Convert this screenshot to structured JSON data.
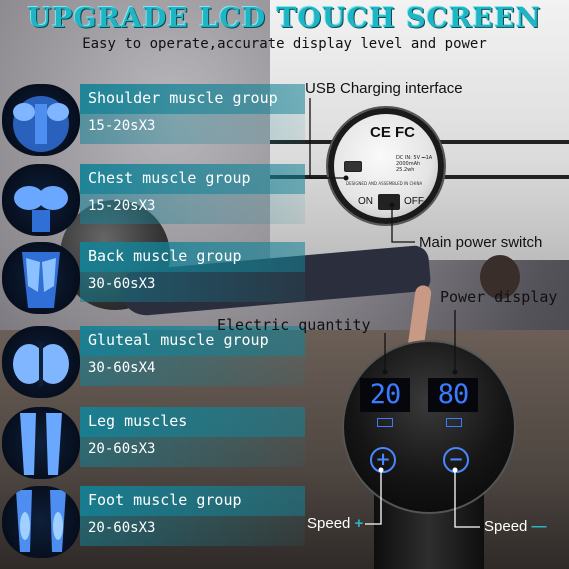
{
  "header": {
    "title": "UPGRADE LCD TOUCH SCREEN",
    "subtitle": "Easy to operate,accurate display level and power"
  },
  "muscle_groups": [
    {
      "name": "Shoulder muscle group",
      "time": "15-20sX3",
      "icon": "shoulder-muscle-icon"
    },
    {
      "name": "Chest muscle group",
      "time": "15-20sX3",
      "icon": "chest-muscle-icon"
    },
    {
      "name": "Back muscle group",
      "time": "30-60sX3",
      "icon": "back-muscle-icon"
    },
    {
      "name": "Gluteal muscle group",
      "time": "30-60sX4",
      "icon": "gluteal-muscle-icon"
    },
    {
      "name": "Leg muscles",
      "time": "20-60sX3",
      "icon": "leg-muscle-icon"
    },
    {
      "name": "Foot muscle group",
      "time": "20-60sX3",
      "icon": "foot-muscle-icon"
    }
  ],
  "usb_panel": {
    "label": "USB Charging interface",
    "cert": "CE FC",
    "specs": "DC IN: 5V ⎓1A 2000mAh 25.2wh",
    "designed": "DESIGNED AND ASSEMBLED IN CHINA",
    "on": "ON",
    "off": "OFF",
    "switch_label": "Main power switch"
  },
  "device": {
    "power_display_label": "Power display",
    "electric_quantity_label": "Electric quantity",
    "left_value": "20",
    "right_value": "80",
    "speed_plus_label": "Speed",
    "speed_plus_sign": "+",
    "speed_minus_label": "Speed",
    "speed_minus_sign": "—",
    "plus_button": "+",
    "minus_button": "−"
  },
  "colors": {
    "accent": "#1fb5c4",
    "lcd": "#3c7bff",
    "label_bar": "#148296"
  }
}
